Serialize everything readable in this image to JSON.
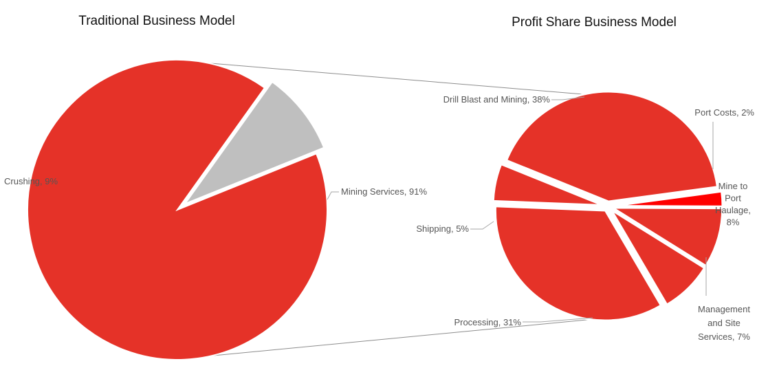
{
  "chart_data": [
    {
      "type": "pie",
      "title": "Traditional Business Model",
      "slices": [
        {
          "label": "Mining Services",
          "value": 91,
          "display": "Mining Services, 91%",
          "color": "#e53228"
        },
        {
          "label": "Crushing",
          "value": 9,
          "display": "Crushing, 9%",
          "color": "#bfbfbf"
        }
      ]
    },
    {
      "type": "pie",
      "title": "Profit Share Business Model",
      "slices": [
        {
          "label": "Drill Blast and Mining",
          "value": 38,
          "display_lines": [
            "Drill Blast and Mining, 38%"
          ],
          "color": "#e53228"
        },
        {
          "label": "Port Costs",
          "value": 2,
          "display_lines": [
            "Port Costs, 2%"
          ],
          "color": "#ff0000"
        },
        {
          "label": "Mine to Port Haulage",
          "value": 8,
          "display_lines": [
            "Mine to",
            "Port",
            "Haulage,",
            "8%"
          ],
          "color": "#e53228"
        },
        {
          "label": "Management and Site Services",
          "value": 7,
          "display_lines": [
            "Management",
            "and Site",
            "Services, 7%"
          ],
          "color": "#e53228"
        },
        {
          "label": "Processing",
          "value": 31,
          "display_lines": [
            "Processing, 31%"
          ],
          "color": "#e53228"
        },
        {
          "label": "Shipping",
          "value": 5,
          "display_lines": [
            "Shipping, 5%"
          ],
          "color": "#e53228"
        }
      ]
    }
  ]
}
